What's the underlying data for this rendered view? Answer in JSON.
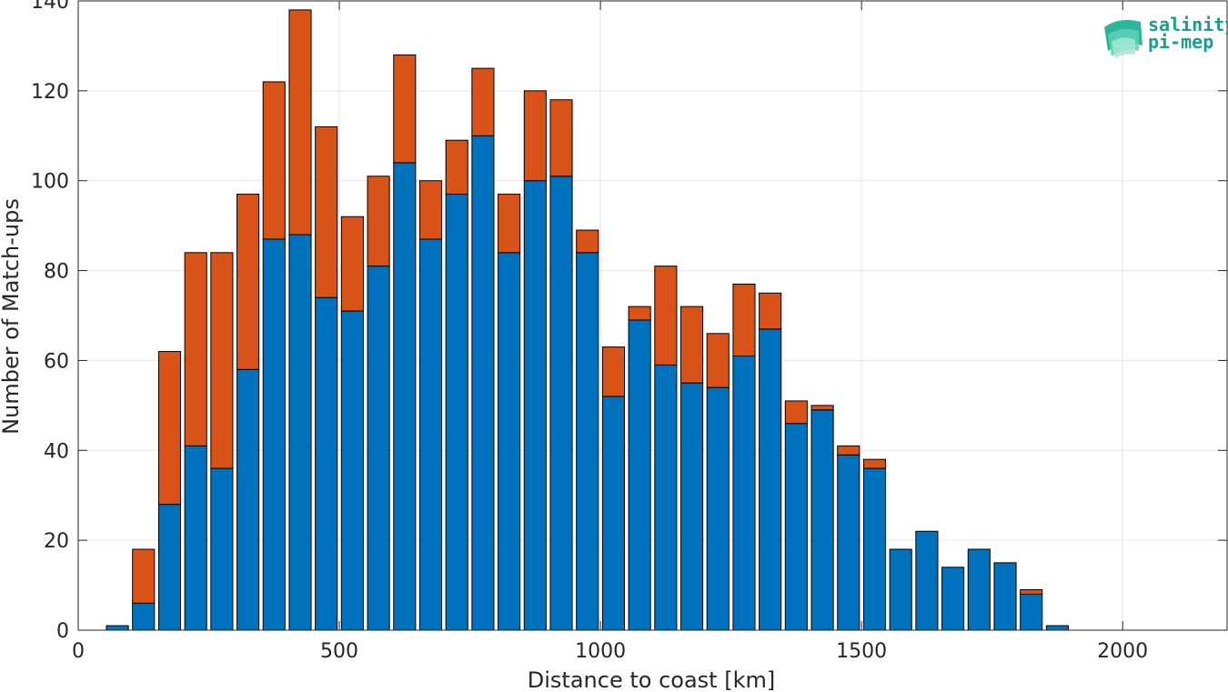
{
  "chart_data": {
    "type": "bar",
    "stacked": true,
    "xlabel": "Distance to coast [km]",
    "ylabel": "Number of Match-ups",
    "xlim": [
      0,
      2200
    ],
    "ylim": [
      0,
      140
    ],
    "xticks": [
      0,
      500,
      1000,
      1500,
      2000
    ],
    "yticks": [
      0,
      20,
      40,
      60,
      80,
      100,
      120,
      140
    ],
    "grid": true,
    "bin_width": 50,
    "x": [
      75,
      125,
      175,
      225,
      275,
      325,
      375,
      425,
      475,
      525,
      575,
      625,
      675,
      725,
      775,
      825,
      875,
      925,
      975,
      1025,
      1075,
      1125,
      1175,
      1225,
      1275,
      1325,
      1375,
      1425,
      1475,
      1525,
      1575,
      1625,
      1675,
      1725,
      1775,
      1825,
      1875
    ],
    "series": [
      {
        "color": "#0072BD",
        "values": [
          1,
          6,
          28,
          41,
          36,
          58,
          87,
          88,
          74,
          71,
          81,
          104,
          87,
          97,
          110,
          84,
          100,
          101,
          84,
          52,
          69,
          59,
          55,
          54,
          61,
          67,
          46,
          49,
          39,
          36,
          18,
          22,
          14,
          18,
          15,
          8,
          1
        ]
      },
      {
        "color": "#D95319",
        "values": [
          0,
          12,
          34,
          43,
          48,
          39,
          35,
          50,
          38,
          21,
          20,
          24,
          13,
          12,
          15,
          13,
          20,
          17,
          5,
          11,
          3,
          22,
          17,
          12,
          16,
          8,
          5,
          1,
          2,
          2,
          0,
          0,
          0,
          0,
          0,
          1,
          0
        ]
      }
    ]
  },
  "logo": {
    "line1": "salinity",
    "line2": "pi-mep",
    "color": "#1a9e8a"
  }
}
